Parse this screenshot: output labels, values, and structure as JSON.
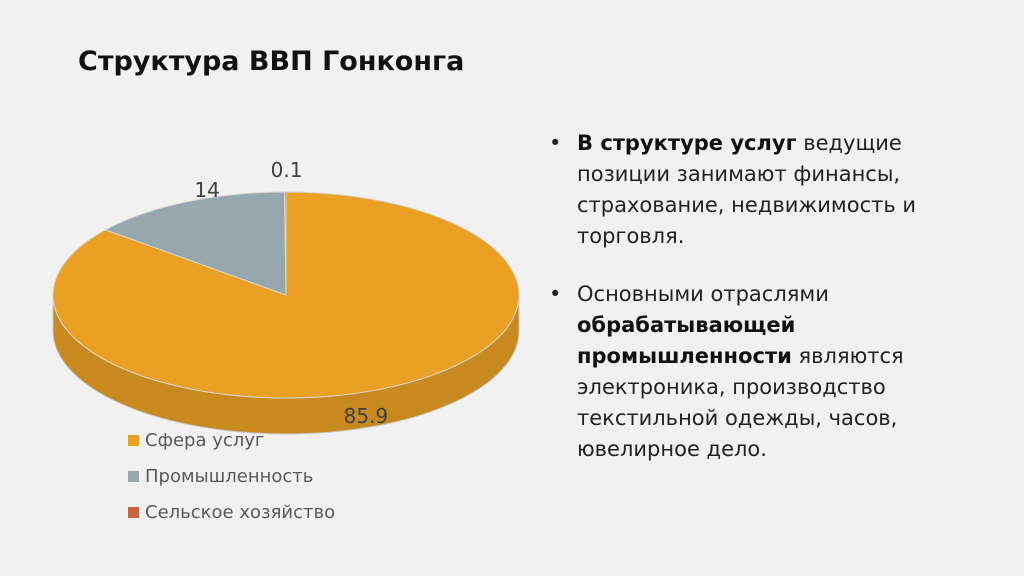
{
  "title": "Структура ВВП Гонконга",
  "chart_data": {
    "type": "pie",
    "categories": [
      "Сфера услуг",
      "Промышленность",
      "Сельское хозяйство"
    ],
    "values": [
      85.9,
      14,
      0.1
    ],
    "data_labels": [
      "85.9",
      "14",
      "0.1"
    ],
    "colors": [
      "#e9a023",
      "#96a7ae",
      "#c8643a"
    ],
    "legend_position": "bottom-left",
    "style": "3d"
  },
  "bullets": [
    {
      "bullet": "•",
      "bold": "В структуре услуг",
      "text": " ведущие позиции занимают финансы, страхование, недвижимость и торговля."
    },
    {
      "bullet": "•",
      "pre": "Основными отраслями ",
      "bold": "обрабатывающей промышленности",
      "text": " являются электроника, производство текстильной одежды, часов, ювелирное дело."
    }
  ]
}
